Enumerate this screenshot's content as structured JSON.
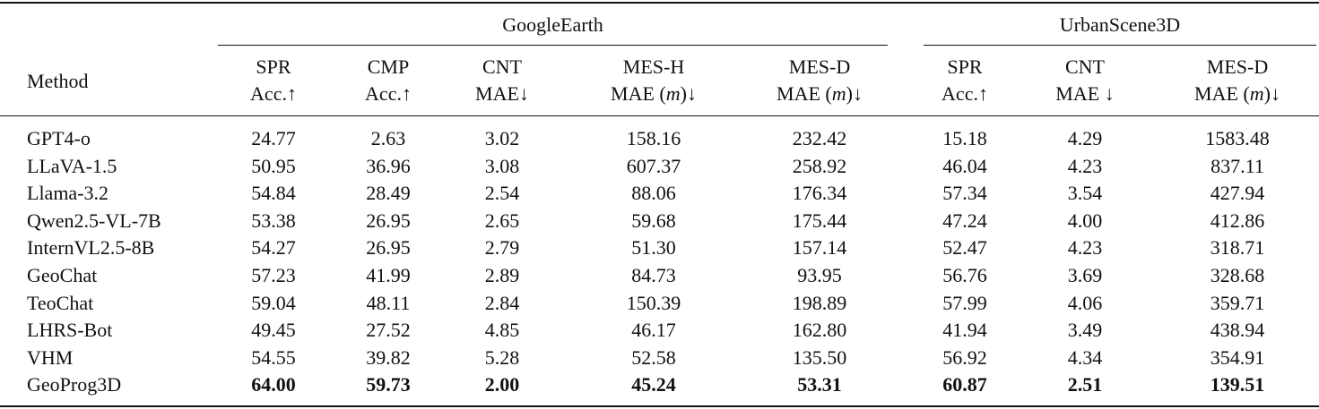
{
  "table": {
    "method_header": "Method",
    "groups": [
      {
        "label": "GoogleEarth",
        "columns": [
          {
            "top": "SPR",
            "bottom": [
              "Acc.↑"
            ]
          },
          {
            "top": "CMP",
            "bottom": [
              "Acc.↑"
            ]
          },
          {
            "top": "CNT",
            "bottom": [
              "MAE↓"
            ]
          },
          {
            "top": "MES-H",
            "bottom": [
              "MAE (",
              "m",
              ")↓"
            ]
          },
          {
            "top": "MES-D",
            "bottom": [
              "MAE (",
              "m",
              ")↓"
            ]
          }
        ]
      },
      {
        "label": "UrbanScene3D",
        "columns": [
          {
            "top": "SPR",
            "bottom": [
              "Acc.↑"
            ]
          },
          {
            "top": "CNT",
            "bottom": [
              "MAE ↓"
            ]
          },
          {
            "top": "MES-D",
            "bottom": [
              "MAE (",
              "m",
              ")↓"
            ]
          }
        ]
      }
    ],
    "rows": [
      {
        "method": "GPT4-o",
        "values": [
          "24.77",
          "2.63",
          "3.02",
          "158.16",
          "232.42",
          "15.18",
          "4.29",
          "1583.48"
        ]
      },
      {
        "method": "LLaVA-1.5",
        "values": [
          "50.95",
          "36.96",
          "3.08",
          "607.37",
          "258.92",
          "46.04",
          "4.23",
          "837.11"
        ]
      },
      {
        "method": "Llama-3.2",
        "values": [
          "54.84",
          "28.49",
          "2.54",
          "88.06",
          "176.34",
          "57.34",
          "3.54",
          "427.94"
        ]
      },
      {
        "method": "Qwen2.5-VL-7B",
        "values": [
          "53.38",
          "26.95",
          "2.65",
          "59.68",
          "175.44",
          "47.24",
          "4.00",
          "412.86"
        ]
      },
      {
        "method": "InternVL2.5-8B",
        "values": [
          "54.27",
          "26.95",
          "2.79",
          "51.30",
          "157.14",
          "52.47",
          "4.23",
          "318.71"
        ]
      },
      {
        "method": "GeoChat",
        "values": [
          "57.23",
          "41.99",
          "2.89",
          "84.73",
          "93.95",
          "56.76",
          "3.69",
          "328.68"
        ]
      },
      {
        "method": "TeoChat",
        "values": [
          "59.04",
          "48.11",
          "2.84",
          "150.39",
          "198.89",
          "57.99",
          "4.06",
          "359.71"
        ]
      },
      {
        "method": "LHRS-Bot",
        "values": [
          "49.45",
          "27.52",
          "4.85",
          "46.17",
          "162.80",
          "41.94",
          "3.49",
          "438.94"
        ]
      },
      {
        "method": "VHM",
        "values": [
          "54.55",
          "39.82",
          "5.28",
          "52.58",
          "135.50",
          "56.92",
          "4.34",
          "354.91"
        ]
      },
      {
        "method": "GeoProg3D",
        "values": [
          "64.00",
          "59.73",
          "2.00",
          "45.24",
          "53.31",
          "60.87",
          "2.51",
          "139.51"
        ]
      }
    ]
  }
}
